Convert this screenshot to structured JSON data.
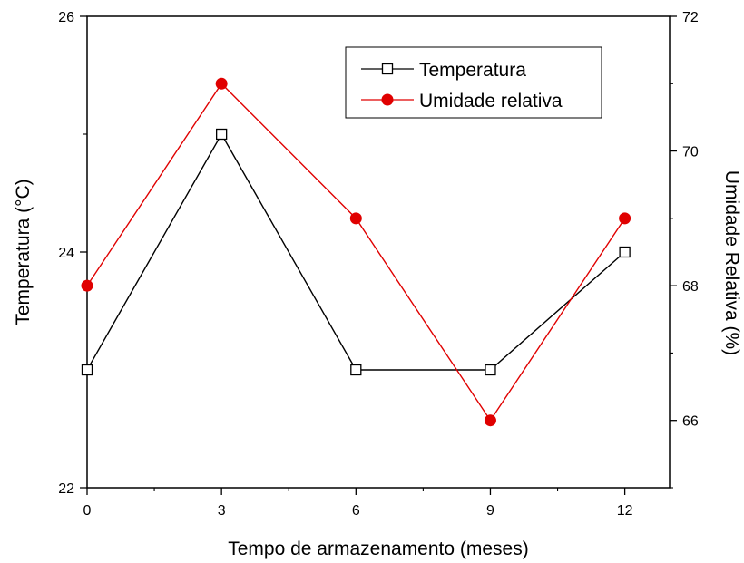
{
  "chart_data": {
    "type": "line",
    "title": "",
    "xlabel": "Tempo de armazenamento (meses)",
    "ylabel": "Temperatura (°C)",
    "y2label": "Umidade Relativa (%)",
    "x": [
      0,
      3,
      6,
      9,
      12
    ],
    "xlim": [
      0,
      13
    ],
    "x_ticks": [
      0,
      3,
      6,
      9,
      12
    ],
    "x_tick_labels": [
      "0",
      "3",
      "6",
      "9",
      "12"
    ],
    "ylim": [
      22,
      26
    ],
    "y_ticks": [
      22,
      24,
      26
    ],
    "y_tick_labels": [
      "22",
      "24",
      "26"
    ],
    "y2lim": [
      65,
      72
    ],
    "y2_ticks": [
      66,
      68,
      70,
      72
    ],
    "y2_tick_labels": [
      "66",
      "68",
      "70",
      "72"
    ],
    "legend_position": "top-right",
    "series": [
      {
        "name": "Temperatura",
        "axis": "left",
        "color": "#000000",
        "marker": "open-square",
        "values": [
          23,
          25,
          23,
          23,
          24
        ]
      },
      {
        "name": "Umidade relativa",
        "axis": "right",
        "color": "#e00000",
        "marker": "filled-circle",
        "values": [
          68,
          71,
          69,
          66,
          69
        ]
      }
    ]
  }
}
